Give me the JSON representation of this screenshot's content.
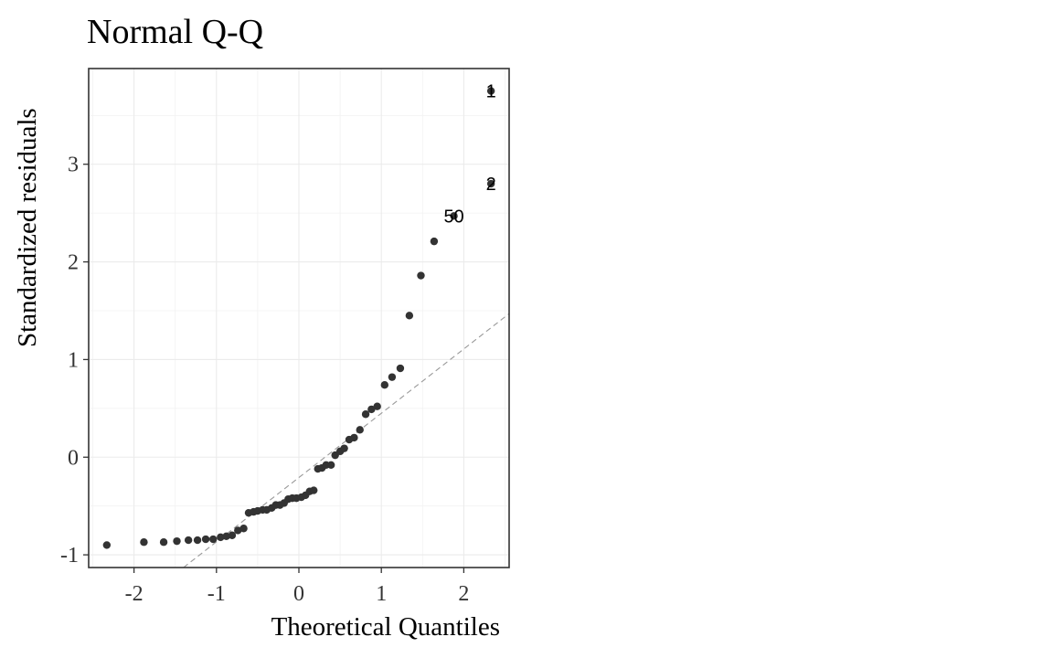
{
  "chart_data": {
    "type": "scatter",
    "title": "Normal Q-Q",
    "xlabel": "Theoretical Quantiles",
    "ylabel": "Standardized residuals",
    "xlim": [
      -2.55,
      2.55
    ],
    "ylim": [
      -1.13,
      3.98
    ],
    "x_ticks": [
      -2,
      -1,
      0,
      1,
      2
    ],
    "x_tick_labels": [
      "-2",
      "-1",
      "0",
      "1",
      "2"
    ],
    "y_ticks": [
      -1,
      0,
      1,
      2,
      3
    ],
    "y_tick_labels": [
      "-1",
      "0",
      "1",
      "2",
      "3"
    ],
    "grid": true,
    "reference_line": {
      "style": "dashed",
      "points": [
        [
          -1.4,
          -1.13
        ],
        [
          2.55,
          1.47
        ]
      ]
    },
    "points": [
      {
        "x": -2.33,
        "y": -0.9
      },
      {
        "x": -1.88,
        "y": -0.87
      },
      {
        "x": -1.64,
        "y": -0.87
      },
      {
        "x": -1.48,
        "y": -0.86
      },
      {
        "x": -1.34,
        "y": -0.85
      },
      {
        "x": -1.23,
        "y": -0.85
      },
      {
        "x": -1.13,
        "y": -0.84
      },
      {
        "x": -1.04,
        "y": -0.84
      },
      {
        "x": -0.95,
        "y": -0.82
      },
      {
        "x": -0.88,
        "y": -0.81
      },
      {
        "x": -0.81,
        "y": -0.8
      },
      {
        "x": -0.74,
        "y": -0.75
      },
      {
        "x": -0.67,
        "y": -0.73
      },
      {
        "x": -0.61,
        "y": -0.57
      },
      {
        "x": -0.55,
        "y": -0.56
      },
      {
        "x": -0.5,
        "y": -0.55
      },
      {
        "x": -0.44,
        "y": -0.54
      },
      {
        "x": -0.39,
        "y": -0.54
      },
      {
        "x": -0.33,
        "y": -0.52
      },
      {
        "x": -0.28,
        "y": -0.49
      },
      {
        "x": -0.23,
        "y": -0.49
      },
      {
        "x": -0.18,
        "y": -0.47
      },
      {
        "x": -0.13,
        "y": -0.43
      },
      {
        "x": -0.08,
        "y": -0.42
      },
      {
        "x": -0.03,
        "y": -0.42
      },
      {
        "x": 0.03,
        "y": -0.41
      },
      {
        "x": 0.08,
        "y": -0.39
      },
      {
        "x": 0.13,
        "y": -0.35
      },
      {
        "x": 0.18,
        "y": -0.34
      },
      {
        "x": 0.23,
        "y": -0.12
      },
      {
        "x": 0.28,
        "y": -0.11
      },
      {
        "x": 0.33,
        "y": -0.08
      },
      {
        "x": 0.39,
        "y": -0.08
      },
      {
        "x": 0.44,
        "y": 0.02
      },
      {
        "x": 0.5,
        "y": 0.06
      },
      {
        "x": 0.55,
        "y": 0.09
      },
      {
        "x": 0.61,
        "y": 0.18
      },
      {
        "x": 0.67,
        "y": 0.2
      },
      {
        "x": 0.74,
        "y": 0.28
      },
      {
        "x": 0.81,
        "y": 0.44
      },
      {
        "x": 0.88,
        "y": 0.49
      },
      {
        "x": 0.95,
        "y": 0.52
      },
      {
        "x": 1.04,
        "y": 0.74
      },
      {
        "x": 1.13,
        "y": 0.82
      },
      {
        "x": 1.23,
        "y": 0.91
      },
      {
        "x": 1.34,
        "y": 1.45
      },
      {
        "x": 1.48,
        "y": 1.86
      },
      {
        "x": 1.64,
        "y": 2.21
      },
      {
        "x": 1.88,
        "y": 2.47,
        "label": "50"
      },
      {
        "x": 2.33,
        "y": 2.8,
        "label": "2"
      },
      {
        "x": 2.33,
        "y": 3.75,
        "label": "1"
      }
    ]
  }
}
